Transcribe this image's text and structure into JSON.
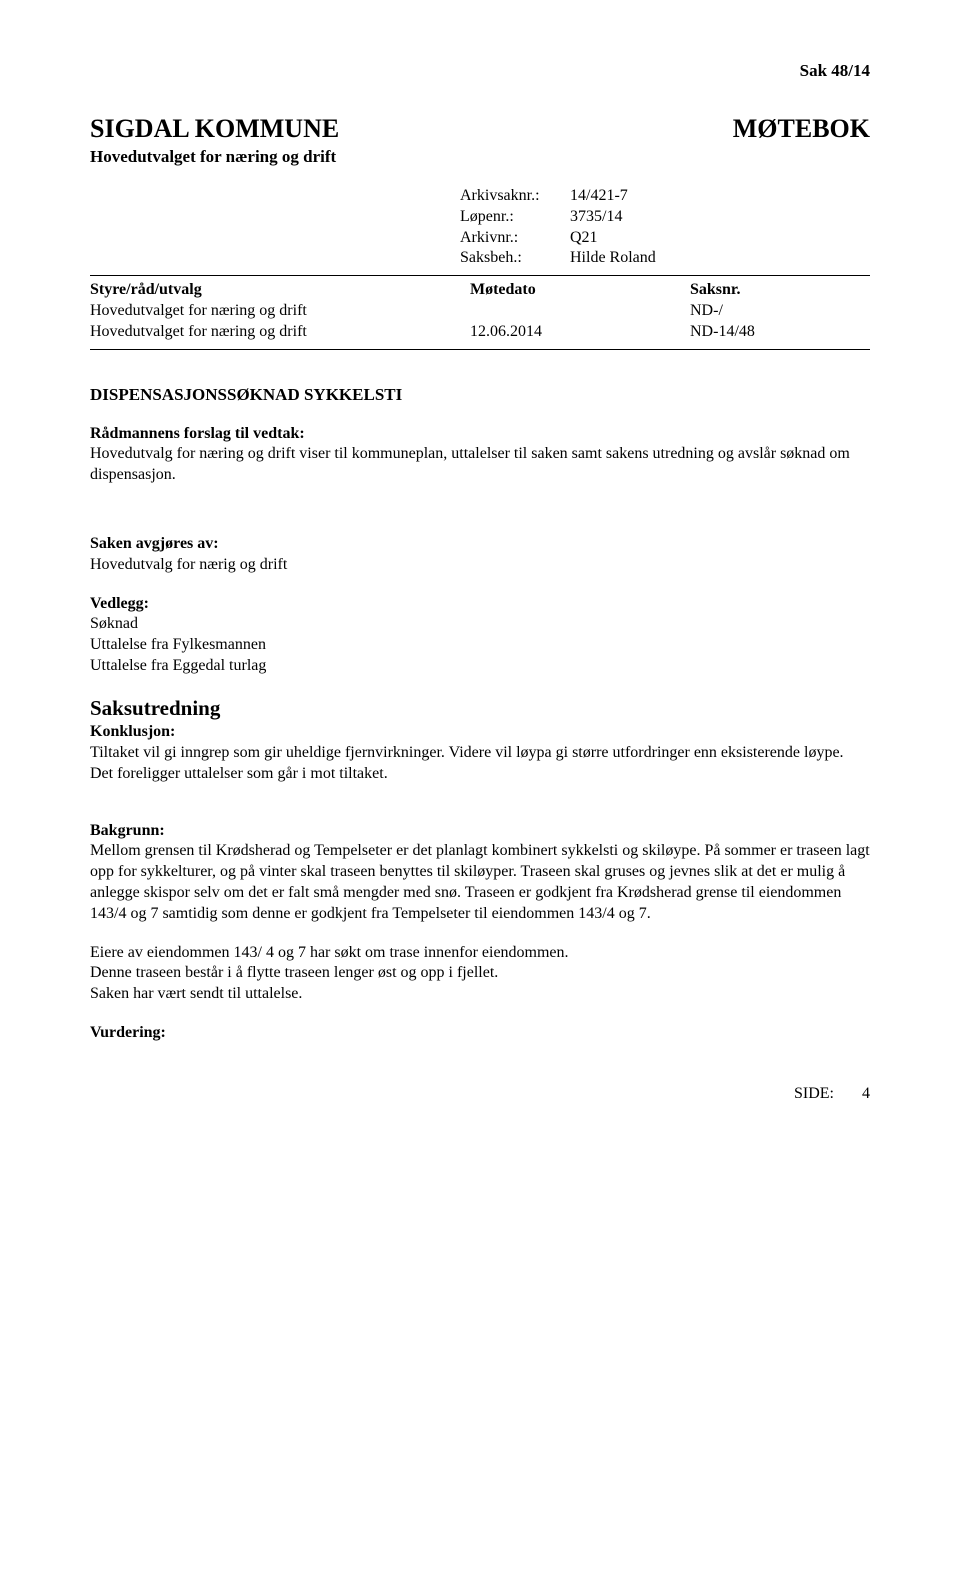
{
  "header": {
    "case_ref": "Sak  48/14"
  },
  "title": {
    "org": "SIGDAL KOMMUNE",
    "doctype": "MØTEBOK",
    "committee": "Hovedutvalget for næring og drift"
  },
  "meta": {
    "arkivsaknr_label": "Arkivsaknr.:",
    "arkivsaknr_value": "14/421-7",
    "lopenr_label": "Løpenr.:",
    "lopenr_value": "3735/14",
    "arkivnr_label": "Arkivnr.:",
    "arkivnr_value": "Q21",
    "saksbeh_label": "Saksbeh.:",
    "saksbeh_value": "Hilde Roland"
  },
  "committee_table": {
    "headers": {
      "col1": "Styre/råd/utvalg",
      "col2": "Møtedato",
      "col3": "Saksnr."
    },
    "rows": [
      {
        "col1": "Hovedutvalget for næring og drift",
        "col2": "",
        "col3": "ND-/"
      },
      {
        "col1": "Hovedutvalget for næring og drift",
        "col2": "12.06.2014",
        "col3": "ND-14/48"
      }
    ]
  },
  "case": {
    "title": "DISPENSASJONSSØKNAD SYKKELSTI",
    "forslag_heading": "Rådmannens forslag til vedtak:",
    "forslag_text": "Hovedutvalg for næring og drift viser til kommuneplan, uttalelser til saken samt sakens utredning og avslår søknad om dispensasjon.",
    "avgjores_heading": "Saken avgjøres av:",
    "avgjores_text": "Hovedutvalg for nærig og drift",
    "vedlegg_heading": "Vedlegg:",
    "vedlegg_items": [
      "Søknad",
      "Uttalelse fra Fylkesmannen",
      "Uttalelse fra Eggedal turlag"
    ],
    "saksutredning_heading": "Saksutredning",
    "konklusjon_heading": "Konklusjon:",
    "konklusjon_text": "Tiltaket vil gi inngrep som gir uheldige fjernvirkninger. Videre vil løypa gi større utfordringer enn eksisterende løype. Det foreligger uttalelser som går i mot tiltaket.",
    "bakgrunn_heading": "Bakgrunn:",
    "bakgrunn_p1": "Mellom grensen til Krødsherad og Tempelseter er det planlagt kombinert sykkelsti og skiløype. På sommer er traseen lagt opp for sykkelturer, og på vinter skal traseen benyttes til skiløyper. Traseen skal gruses og jevnes slik at det er mulig å anlegge skispor selv om det er falt små mengder med snø. Traseen er godkjent fra Krødsherad grense til eiendommen 143/4 og 7 samtidig som denne er godkjent fra Tempelseter til eiendommen 143/4 og 7.",
    "bakgrunn_p2_l1": "Eiere av eiendommen 143/ 4 og 7 har søkt om trase innenfor eiendommen.",
    "bakgrunn_p2_l2": "Denne traseen består i å flytte traseen lenger øst og opp i fjellet.",
    "bakgrunn_p2_l3": "Saken har vært sendt til uttalelse.",
    "vurdering_heading": "Vurdering:"
  },
  "footer": {
    "side_label": "SIDE:",
    "side_value": "4"
  }
}
